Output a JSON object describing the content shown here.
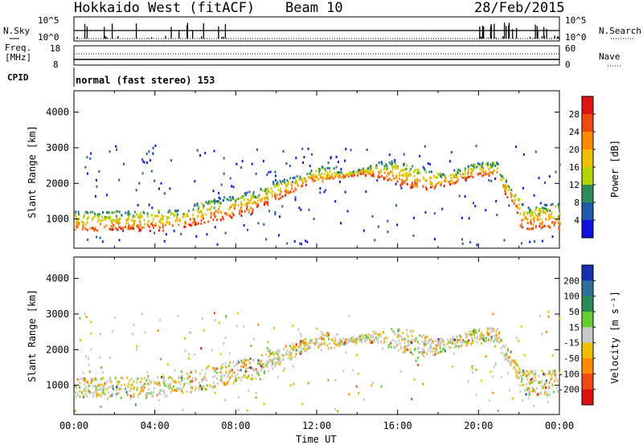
{
  "header": {
    "title": "Hokkaido West (fitACF)",
    "beam": "Beam 10",
    "date": "28/Feb/2015"
  },
  "panels": {
    "noise": {
      "left_label": "N.Sky",
      "right_label": "N.Search",
      "left_ticks": [
        "10^5",
        "10^0"
      ],
      "right_ticks": [
        "10^5",
        "10^0"
      ]
    },
    "freq": {
      "left_label_1": "Freq.",
      "left_label_2": "[MHz]",
      "right_label": "Nave",
      "left_ticks": [
        "18",
        "8"
      ],
      "right_ticks": [
        "60",
        "0"
      ]
    },
    "cpid": {
      "label": "CPID",
      "text": "normal (fast stereo) 153"
    }
  },
  "chart_data": [
    {
      "type": "heatmap",
      "name": "power",
      "ylabel": "Slant Range [km]",
      "ylim": [
        180,
        4600
      ],
      "yticks": [
        1000,
        2000,
        3000,
        4000
      ],
      "xlim": [
        0,
        24
      ],
      "colorbar_label": "Power [dB]",
      "colorbar_ticks": [
        "28",
        "24",
        "20",
        "16",
        "12",
        "8",
        "4"
      ],
      "colorbar_colors": [
        "#e01010",
        "#f04a10",
        "#ff8c00",
        "#f0c000",
        "#b4d400",
        "#2e8b57",
        "#1f5aa8",
        "#1010e0"
      ],
      "grid": false
    },
    {
      "type": "heatmap",
      "name": "velocity",
      "ylabel": "Slant Range [km]",
      "ylim": [
        180,
        4600
      ],
      "yticks": [
        1000,
        2000,
        3000,
        4000
      ],
      "xlim": [
        0,
        24
      ],
      "xlabel": "Time UT",
      "xticks": [
        "00:00",
        "04:00",
        "08:00",
        "12:00",
        "16:00",
        "20:00",
        "00:00"
      ],
      "colorbar_label": "Velocity [m s⁻¹]",
      "colorbar_ticks": [
        "200",
        "100",
        "50",
        "15",
        "-15",
        "-50",
        "-100",
        "-200"
      ],
      "colorbar_colors": [
        "#1a2fb0",
        "#2e6f9e",
        "#2e8b57",
        "#66cc33",
        "#c8c8c8",
        "#f0c000",
        "#ff8c00",
        "#f04a10",
        "#e01010"
      ],
      "grid": false
    }
  ]
}
